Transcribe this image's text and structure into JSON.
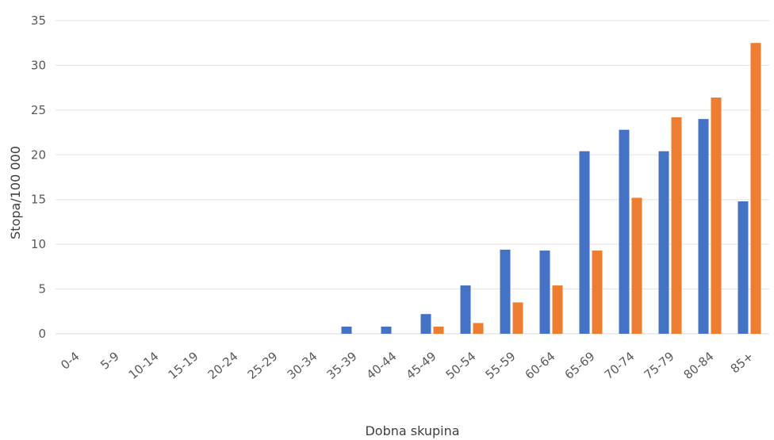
{
  "chart_data": {
    "type": "bar",
    "title": "",
    "xlabel": "Dobna skupina",
    "ylabel": "Stopa/100 000",
    "ylim": [
      0,
      35
    ],
    "yticks": [
      0,
      5,
      10,
      15,
      20,
      25,
      30,
      35
    ],
    "grid": true,
    "legend": "none",
    "categories": [
      "0-4",
      "5-9",
      "10-14",
      "15-19",
      "20-24",
      "25-29",
      "30-34",
      "35-39",
      "40-44",
      "45-49",
      "50-54",
      "55-59",
      "60-64",
      "65-69",
      "70-74",
      "75-79",
      "80-84",
      "85+"
    ],
    "series": [
      {
        "color": "#4472c4",
        "values": [
          0,
          0,
          0,
          0,
          0,
          0,
          0,
          0.8,
          0.8,
          2.2,
          5.4,
          9.4,
          9.3,
          20.4,
          22.8,
          20.4,
          24.0,
          14.8
        ]
      },
      {
        "color": "#ed7d31",
        "values": [
          0,
          0,
          0,
          0,
          0,
          0,
          0,
          0,
          0,
          0.8,
          1.2,
          3.5,
          5.4,
          9.3,
          15.2,
          24.2,
          26.4,
          32.5
        ]
      }
    ]
  }
}
